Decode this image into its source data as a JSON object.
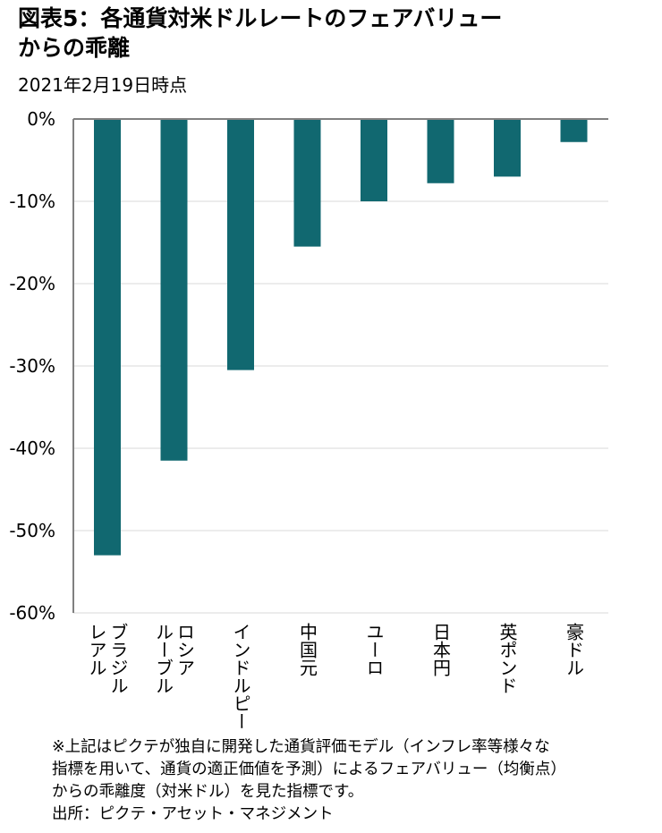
{
  "chart_data": {
    "type": "bar",
    "title": [
      "図表5：各通貨対米ドルレートのフェアバリュー",
      "からの乖離"
    ],
    "subtitle": "2021年2月19日時点",
    "categories": [
      [
        "ブラジル",
        "レアル"
      ],
      [
        "ロシア",
        "ルーブル"
      ],
      [
        "インドルピー"
      ],
      [
        "中国元"
      ],
      [
        "ユーロ"
      ],
      [
        "日本円"
      ],
      [
        "英ポンド"
      ],
      [
        "豪ドル"
      ]
    ],
    "values": [
      -53.0,
      -41.5,
      -30.5,
      -15.5,
      -10.0,
      -7.8,
      -7.0,
      -2.8
    ],
    "unit": "%",
    "ylim": [
      -60,
      0
    ],
    "yticks": [
      0,
      -10,
      -20,
      -30,
      -40,
      -50,
      -60
    ],
    "ytick_labels": [
      "0%",
      "-10%",
      "-20%",
      "-30%",
      "-40%",
      "-50%",
      "-60%"
    ],
    "xlabel": "",
    "ylabel": "",
    "grid": true,
    "bar_color": "#116870",
    "grid_color": "#d9d9d9",
    "axis_color": "#808080"
  },
  "footnote": [
    "※上記はピクテが独自に開発した通貨評価モデル（インフレ率等様々な",
    "指標を用いて、通貨の適正価値を予測）によるフェアバリュー（均衡点）",
    "からの乖離度（対米ドル）を見た指標です。",
    "出所：ピクテ・アセット・マネジメント"
  ]
}
